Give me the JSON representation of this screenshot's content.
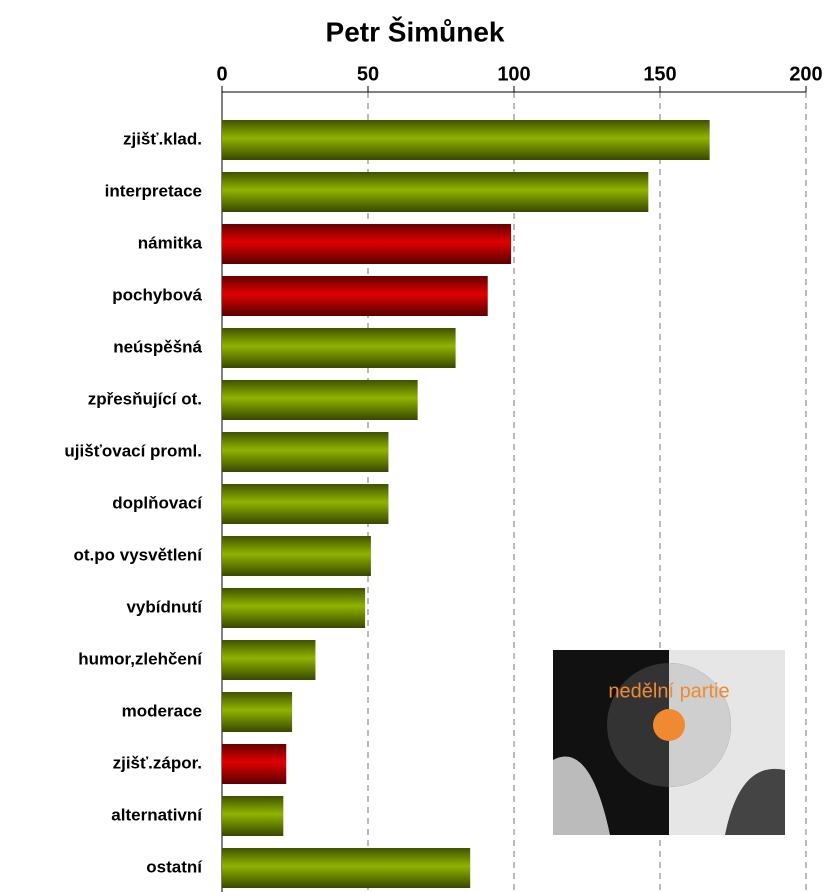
{
  "chart_data": {
    "type": "bar",
    "orientation": "horizontal",
    "title": "Petr Šimůnek",
    "categories": [
      "zjišť.klad.",
      "interpretace",
      "námitka",
      "pochybová",
      "neúspěšná",
      "zpřesňující ot.",
      "ujišťovací proml.",
      "doplňovací",
      "ot.po vysvětlení",
      "vybídnutí",
      "humor,zlehčení",
      "moderace",
      "zjišť.zápor.",
      "alternativní",
      "ostatní"
    ],
    "values": [
      167,
      146,
      99,
      91,
      80,
      67,
      57,
      57,
      51,
      49,
      32,
      24,
      22,
      21,
      85
    ],
    "colors": [
      "#8fb300",
      "#8fb300",
      "#e00000",
      "#e00000",
      "#8fb300",
      "#8fb300",
      "#8fb300",
      "#8fb300",
      "#8fb300",
      "#8fb300",
      "#8fb300",
      "#8fb300",
      "#e00000",
      "#8fb300",
      "#8fb300"
    ],
    "xlim": [
      0,
      200
    ],
    "xticks": [
      0,
      50,
      100,
      150,
      200
    ],
    "grid": true,
    "inset_label": "nedělní partie"
  }
}
